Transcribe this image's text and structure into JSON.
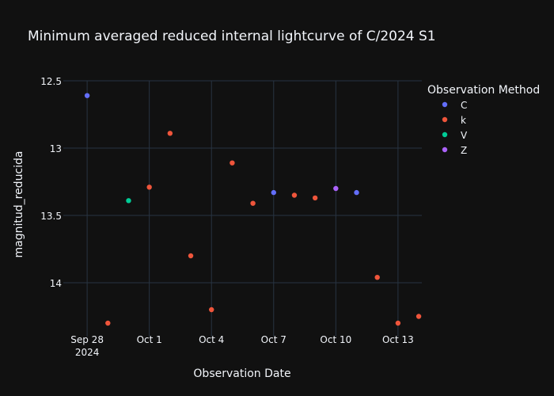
{
  "chart_data": {
    "type": "scatter",
    "title": "Minimum averaged reduced internal lightcurve of C/2024 S1",
    "xlabel": "Observation Date",
    "ylabel": "magnitud_reducida",
    "y_reversed": true,
    "ylim": [
      12.5,
      14.4
    ],
    "x_range": [
      "2024-09-27",
      "2024-10-14"
    ],
    "grid": true,
    "legend": {
      "title": "Observation Method",
      "placement": "top-right"
    },
    "x_ticks": [
      {
        "date": "2024-09-28",
        "label": "Sep 28",
        "sublabel": "2024"
      },
      {
        "date": "2024-10-01",
        "label": "Oct 1"
      },
      {
        "date": "2024-10-04",
        "label": "Oct 4"
      },
      {
        "date": "2024-10-07",
        "label": "Oct 7"
      },
      {
        "date": "2024-10-10",
        "label": "Oct 10"
      },
      {
        "date": "2024-10-13",
        "label": "Oct 13"
      }
    ],
    "y_ticks": [
      {
        "value": 12.5,
        "label": "12.5"
      },
      {
        "value": 13.0,
        "label": "13"
      },
      {
        "value": 13.5,
        "label": "13.5"
      },
      {
        "value": 14.0,
        "label": "14"
      }
    ],
    "series": [
      {
        "name": "C",
        "color": "#636efa",
        "points": [
          {
            "x": "2024-09-28",
            "y": 12.61
          },
          {
            "x": "2024-10-07",
            "y": 13.33
          },
          {
            "x": "2024-10-11",
            "y": 13.33
          }
        ]
      },
      {
        "name": "k",
        "color": "#ef553b",
        "points": [
          {
            "x": "2024-09-29",
            "y": 14.3
          },
          {
            "x": "2024-10-01",
            "y": 13.29
          },
          {
            "x": "2024-10-02",
            "y": 12.89
          },
          {
            "x": "2024-10-03",
            "y": 13.8
          },
          {
            "x": "2024-10-04",
            "y": 14.2
          },
          {
            "x": "2024-10-05",
            "y": 13.11
          },
          {
            "x": "2024-10-06",
            "y": 13.41
          },
          {
            "x": "2024-10-08",
            "y": 13.35
          },
          {
            "x": "2024-10-09",
            "y": 13.37
          },
          {
            "x": "2024-10-12",
            "y": 13.96
          },
          {
            "x": "2024-10-13",
            "y": 14.3
          },
          {
            "x": "2024-10-14",
            "y": 14.25
          }
        ]
      },
      {
        "name": "V",
        "color": "#00cc96",
        "points": [
          {
            "x": "2024-09-30",
            "y": 13.39
          }
        ]
      },
      {
        "name": "Z",
        "color": "#ab63fa",
        "points": [
          {
            "x": "2024-10-10",
            "y": 13.3
          }
        ]
      }
    ]
  }
}
